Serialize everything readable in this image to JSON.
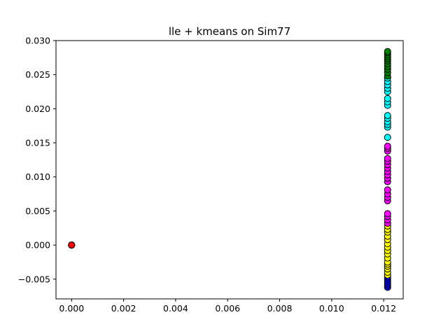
{
  "chart_data": {
    "type": "scatter",
    "title": "lle + kmeans on Sim77",
    "xlabel": "",
    "ylabel": "",
    "xlim": [
      -0.0006,
      0.01275
    ],
    "ylim": [
      -0.0079,
      0.03
    ],
    "grid": false,
    "x_ticks": [
      {
        "value": 0.0,
        "label": "0.000"
      },
      {
        "value": 0.002,
        "label": "0.002"
      },
      {
        "value": 0.004,
        "label": "0.004"
      },
      {
        "value": 0.006,
        "label": "0.006"
      },
      {
        "value": 0.008,
        "label": "0.008"
      },
      {
        "value": 0.01,
        "label": "0.010"
      },
      {
        "value": 0.012,
        "label": "0.012"
      }
    ],
    "y_ticks": [
      {
        "value": -0.005,
        "label": "−0.005"
      },
      {
        "value": 0.0,
        "label": "0.000"
      },
      {
        "value": 0.005,
        "label": "0.005"
      },
      {
        "value": 0.01,
        "label": "0.010"
      },
      {
        "value": 0.015,
        "label": "0.015"
      },
      {
        "value": 0.02,
        "label": "0.020"
      },
      {
        "value": 0.025,
        "label": "0.025"
      },
      {
        "value": 0.03,
        "label": "0.030"
      }
    ],
    "series": [
      {
        "color": "#ff0000",
        "x": 0.0,
        "y": [
          0.0,
          0.0,
          0.0,
          0.0,
          0.0
        ]
      },
      {
        "color": "#0000ff",
        "x": 0.01215,
        "y": [
          -0.0062,
          -0.0059,
          -0.0056,
          -0.0053,
          -0.005,
          -0.0047
        ]
      },
      {
        "color": "#ffff00",
        "x": 0.01215,
        "y": [
          -0.0044,
          -0.004,
          -0.0035,
          -0.0031,
          -0.0028,
          -0.0025,
          -0.0019,
          -0.0013,
          -0.0008,
          -0.0003,
          0.0002,
          0.0008,
          0.0013,
          0.0019,
          0.0023,
          0.0028
        ]
      },
      {
        "color": "#ff00ff",
        "x": 0.01215,
        "y": [
          0.0032,
          0.0037,
          0.0042,
          0.0046,
          0.0065,
          0.007,
          0.0075,
          0.0081,
          0.0093,
          0.0098,
          0.0103,
          0.0108,
          0.0113,
          0.0118,
          0.0123,
          0.0127,
          0.0138,
          0.0142,
          0.0145
        ]
      },
      {
        "color": "#00ffff",
        "x": 0.01215,
        "y": [
          0.0158,
          0.0173,
          0.0177,
          0.0181,
          0.0186,
          0.019,
          0.0205,
          0.021,
          0.0215,
          0.0225,
          0.023,
          0.0235,
          0.024,
          0.0245
        ]
      },
      {
        "color": "#008000",
        "x": 0.01215,
        "y": [
          0.0248,
          0.0253,
          0.0258,
          0.0262,
          0.0266,
          0.027,
          0.0273,
          0.0276,
          0.0279,
          0.0282,
          0.0284
        ]
      }
    ]
  }
}
